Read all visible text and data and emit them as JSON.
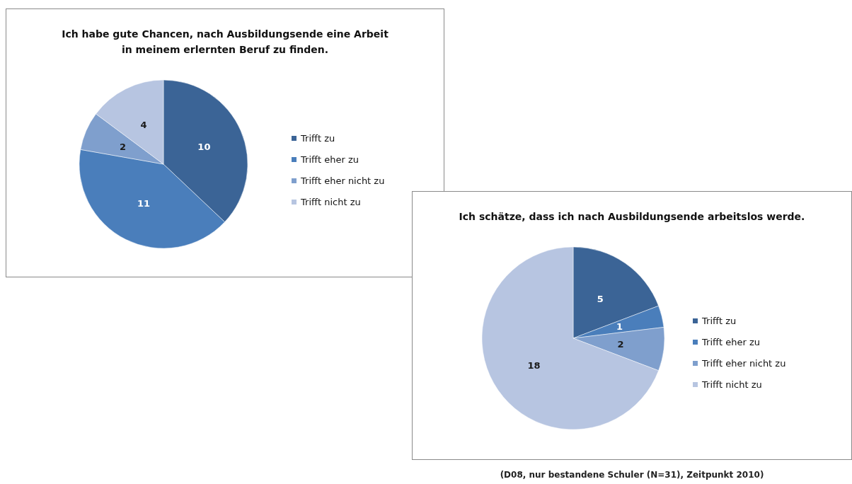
{
  "chart_data": [
    {
      "type": "pie",
      "title": "Ich habe gute Chancen, nach Ausbildungsende eine Arbeit\nin meinem erlernten Beruf zu finden.",
      "categories": [
        "Trifft zu",
        "Trifft eher zu",
        "Trifft eher nicht zu",
        "Trifft nicht zu"
      ],
      "values": [
        10,
        11,
        2,
        4
      ],
      "colors": [
        "#3b6496",
        "#4a7ebb",
        "#7f9fcd",
        "#b7c5e1"
      ],
      "data_labels": true,
      "legend": "right"
    },
    {
      "type": "pie",
      "title": "Ich schätze, dass ich nach Ausbildungsende arbeitslos werde.",
      "categories": [
        "Trifft zu",
        "Trifft eher zu",
        "Trifft eher nicht zu",
        "Trifft nicht zu"
      ],
      "values": [
        5,
        1,
        2,
        18
      ],
      "colors": [
        "#3b6496",
        "#4a7ebb",
        "#7f9fcd",
        "#b7c5e1"
      ],
      "data_labels": true,
      "legend": "right",
      "annotations": [
        "(D08, nur bestandene Schuler (N=31), Zeitpunkt 2010)"
      ]
    }
  ]
}
